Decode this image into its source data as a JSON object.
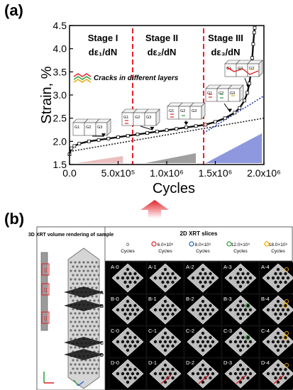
{
  "panel_a": {
    "letter": "(a)",
    "stages": [
      {
        "name": "Stage I",
        "rate": "dε₁/dN"
      },
      {
        "name": "Stage II",
        "rate": "dε₂/dN"
      },
      {
        "name": "Stage III",
        "rate": "dε₃/dN"
      }
    ],
    "legend_text": "Cracks in different layers",
    "grain_labels": [
      "G1",
      "G2",
      "G3"
    ],
    "colors": {
      "boundary": "#e21f26",
      "fit_line": "#1f3fb0",
      "crack_red": "#e21f26",
      "crack_green": "#2a9d3a",
      "crack_orange": "#f0a500"
    }
  },
  "chart_data": {
    "type": "scatter",
    "xlabel": "Cycles",
    "ylabel": "Strain, %",
    "xlim": [
      0,
      2000000
    ],
    "ylim": [
      1.5,
      4.5
    ],
    "xticks": [
      0,
      500000,
      1000000,
      1500000,
      2000000
    ],
    "xtick_labels": [
      "0.0",
      "5.0x10⁵",
      "1.0x10⁶",
      "1.5x10⁶",
      "2.0x10⁶"
    ],
    "yticks": [
      1.5,
      2.0,
      2.5,
      3.0,
      3.5,
      4.0,
      4.5
    ],
    "ytick_labels": [
      "1.5",
      "2.0",
      "2.5",
      "3.0",
      "3.5",
      "4.0",
      "4.5"
    ],
    "grid": false,
    "stage_boundaries": [
      650000,
      1380000
    ],
    "series": [
      {
        "x": [
          0,
          20000,
          50000,
          100000,
          200000,
          300000,
          400000,
          500000,
          600000,
          700000,
          800000,
          900000,
          1000000,
          1100000,
          1200000,
          1300000,
          1400000,
          1500000,
          1600000,
          1700000,
          1750000,
          1800000,
          1830000,
          1850000,
          1870000,
          1880000,
          1890000,
          1900000,
          1905000
        ],
        "y": [
          1.72,
          1.85,
          1.9,
          1.95,
          2.0,
          2.03,
          2.06,
          2.09,
          2.12,
          2.15,
          2.18,
          2.21,
          2.24,
          2.27,
          2.3,
          2.33,
          2.36,
          2.42,
          2.5,
          2.62,
          2.72,
          2.88,
          3.05,
          3.25,
          3.55,
          3.8,
          4.1,
          4.35,
          4.45
        ]
      }
    ],
    "fit_lines": [
      {
        "x": [
          0,
          2000000
        ],
        "y": [
          1.78,
          2.5
        ]
      },
      {
        "x": [
          1380000,
          2000000
        ],
        "y": [
          2.18,
          2.98
        ]
      }
    ]
  },
  "panel_b": {
    "letter": "(b)",
    "left_header": "3D XRT volume rendering of sample",
    "right_header": "2D XRT slices",
    "cycle_columns": [
      {
        "value": "0",
        "unit": "Cycles"
      },
      {
        "value": "6.0×10⁵",
        "unit": "Cycles"
      },
      {
        "value": "8.0×10⁵",
        "unit": "Cycles"
      },
      {
        "value": "12.0×10⁵",
        "unit": "Cycles"
      },
      {
        "value": "18.0×10⁵",
        "unit": "Cycles"
      }
    ],
    "column_marker_colors": [
      "#ffffff",
      "#e21f26",
      "#1f5fd0",
      "#2a9d3a",
      "#f0a500"
    ],
    "slice_labels": [
      [
        "A-0",
        "A-1",
        "A-2",
        "A-3",
        "A-4"
      ],
      [
        "B-0",
        "B-1",
        "B-2",
        "B-3",
        "B-4"
      ],
      [
        "C-0",
        "C-1",
        "C-2",
        "C-3",
        "C-4"
      ],
      [
        "D-0",
        "D-1",
        "D-2",
        "D-3",
        "D-4"
      ]
    ],
    "plane_labels": [
      "A",
      "B",
      "C",
      "D"
    ],
    "layer_labels": [
      "G1",
      "G2",
      "G3"
    ]
  }
}
